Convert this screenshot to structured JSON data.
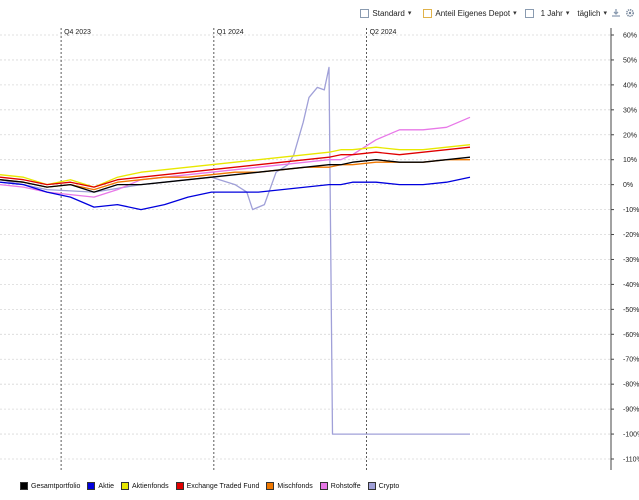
{
  "toolbar": {
    "view_label": "Standard",
    "mode_label": "Anteil Eigenes Depot",
    "range_label": "1 Jahr",
    "interval_label": "täglich",
    "icons": [
      "calendar-icon",
      "download-icon",
      "settings-gear-icon"
    ]
  },
  "chart_data": {
    "type": "line",
    "title": "",
    "xlabel": "",
    "ylabel": "",
    "ylim": [
      -110,
      60
    ],
    "yticks": [
      60,
      50,
      40,
      30,
      20,
      10,
      0,
      -10,
      -20,
      -30,
      -40,
      -50,
      -60,
      -70,
      -80,
      -90,
      -100,
      -110
    ],
    "ytick_labels": [
      "60%",
      "50%",
      "40%",
      "30%",
      "20%",
      "10%",
      "0%",
      "-10%",
      "-20%",
      "-30%",
      "-40%",
      "-50%",
      "-60%",
      "-70%",
      "-80%",
      "-90%",
      "-100%",
      "-110%"
    ],
    "xlim": [
      0,
      52
    ],
    "quarter_markers": [
      {
        "label": "Q4 2023",
        "x": 5.2
      },
      {
        "label": "Q1 2024",
        "x": 18.2
      },
      {
        "label": "Q2 2024",
        "x": 31.2
      }
    ],
    "grid": true,
    "legend_position": "bottom",
    "x": [
      0,
      2,
      4,
      6,
      8,
      10,
      12,
      14,
      16,
      18,
      20,
      22,
      24,
      26,
      28,
      29,
      30,
      32,
      34,
      36,
      38,
      40
    ],
    "series": [
      {
        "name": "Gesamtportfolio",
        "color": "#000000",
        "values": [
          2,
          1,
          -1,
          0,
          -3,
          0,
          0,
          1,
          2,
          3,
          4,
          5,
          6,
          7,
          8,
          8,
          9,
          10,
          9,
          9,
          10,
          11
        ]
      },
      {
        "name": "Aktie",
        "color": "#0000dd",
        "values": [
          1,
          0,
          -3,
          -5,
          -9,
          -8,
          -10,
          -8,
          -5,
          -3,
          -3,
          -3,
          -2,
          -1,
          0,
          0,
          1,
          1,
          0,
          0,
          1,
          3
        ]
      },
      {
        "name": "Aktienfonds",
        "color": "#e8e800",
        "values": [
          4,
          3,
          0,
          2,
          -1,
          3,
          5,
          6,
          7,
          8,
          9,
          10,
          11,
          12,
          13,
          14,
          14,
          15,
          14,
          14,
          15,
          16
        ]
      },
      {
        "name": "Exchange Traded Fund",
        "color": "#e00000",
        "values": [
          3,
          2,
          0,
          1,
          -1,
          2,
          3,
          4,
          5,
          6,
          7,
          8,
          9,
          10,
          11,
          12,
          12,
          13,
          12,
          13,
          14,
          15
        ]
      },
      {
        "name": "Mischfonds",
        "color": "#f07800",
        "values": [
          2,
          1,
          -1,
          0,
          -2,
          1,
          2,
          3,
          3,
          4,
          5,
          5,
          6,
          7,
          7,
          8,
          8,
          9,
          9,
          9,
          10,
          10
        ]
      },
      {
        "name": "Rohstoffe",
        "color": "#e878e8",
        "values": [
          0,
          -1,
          -3,
          -4,
          -5,
          -2,
          2,
          3,
          4,
          5,
          6,
          7,
          8,
          9,
          10,
          10,
          12,
          18,
          22,
          22,
          23,
          27
        ]
      },
      {
        "name": "Crypto",
        "color": "#a0a0d8",
        "points": [
          [
            0,
            2
          ],
          [
            4,
            -2
          ],
          [
            8,
            -3
          ],
          [
            12,
            0
          ],
          [
            16,
            2
          ],
          [
            18,
            3
          ],
          [
            20,
            0
          ],
          [
            21,
            -3
          ],
          [
            21.5,
            -10
          ],
          [
            22.5,
            -8
          ],
          [
            23.5,
            5
          ],
          [
            24.5,
            8
          ],
          [
            25,
            12
          ],
          [
            25.8,
            25
          ],
          [
            26.3,
            35
          ],
          [
            27,
            39
          ],
          [
            27.6,
            38
          ],
          [
            28,
            47
          ],
          [
            28.3,
            -100
          ],
          [
            40,
            -100
          ]
        ]
      }
    ]
  }
}
